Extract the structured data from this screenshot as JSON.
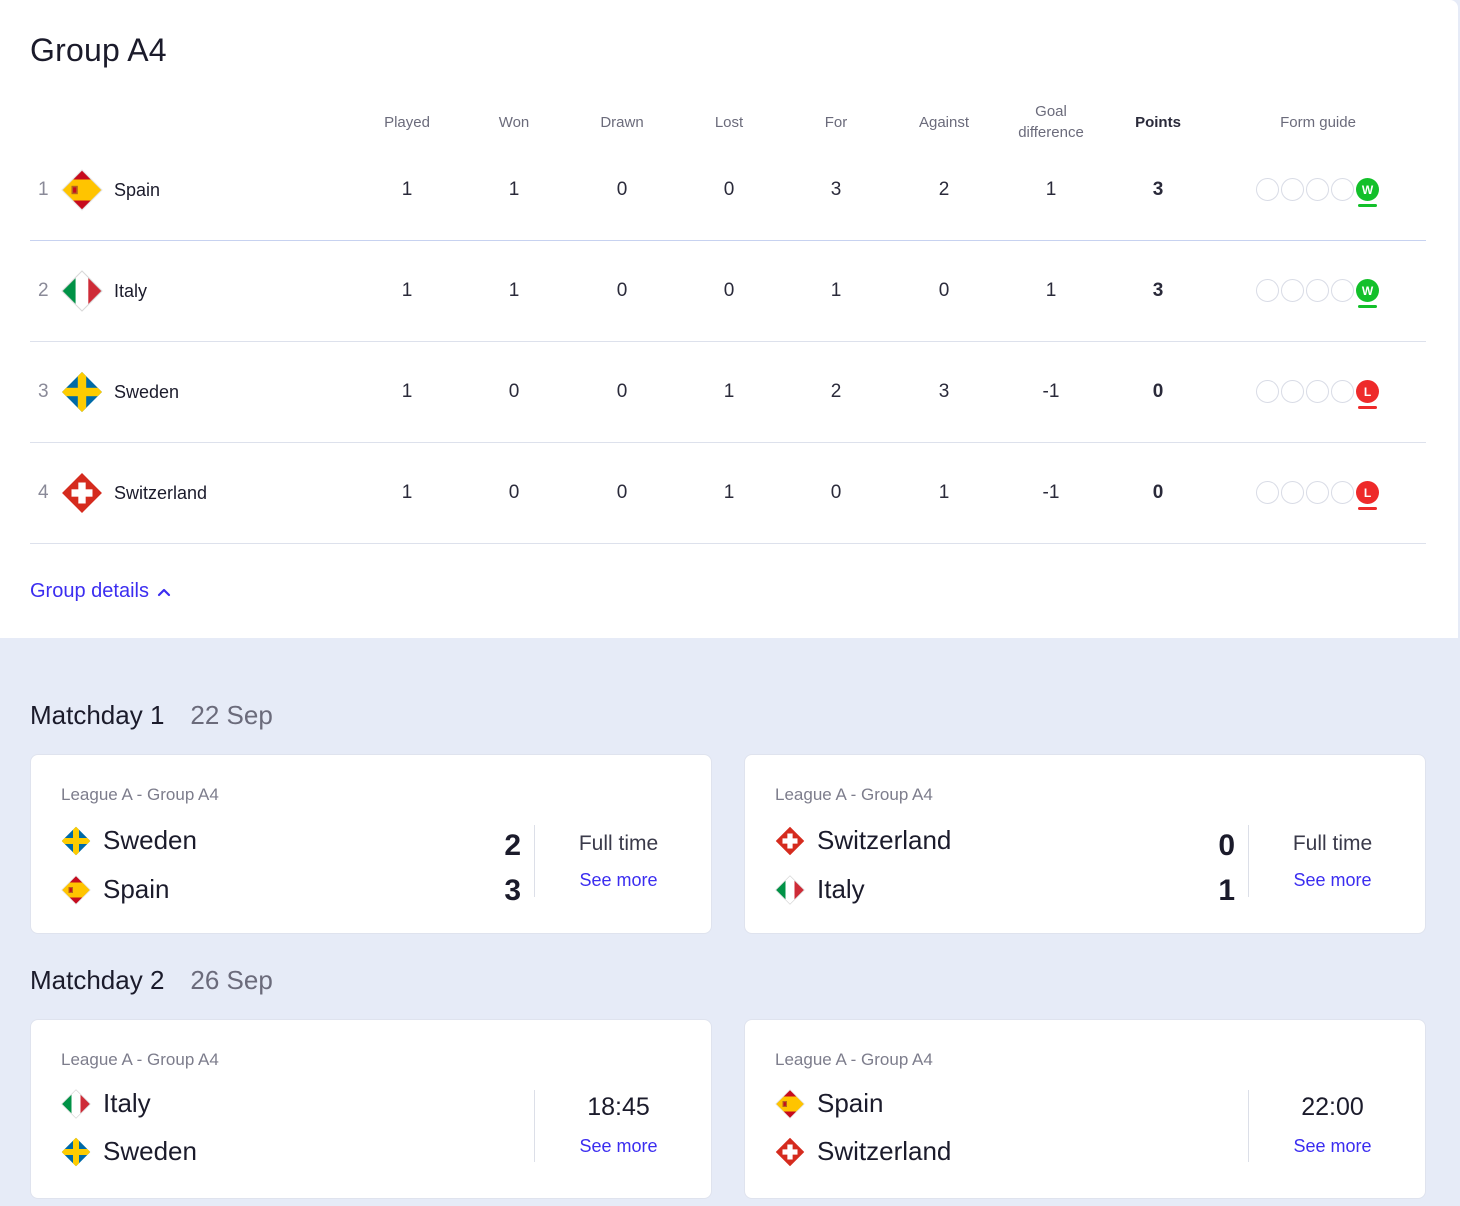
{
  "group": {
    "title": "Group A4",
    "details_label": "Group details"
  },
  "table": {
    "headers": {
      "played": "Played",
      "won": "Won",
      "drawn": "Drawn",
      "lost": "Lost",
      "for": "For",
      "against": "Against",
      "goal_difference": "Goal difference",
      "points": "Points",
      "form_guide": "Form guide"
    },
    "rows": [
      {
        "pos": "1",
        "team": "Spain",
        "flag": "spain-flag-icon",
        "played": "1",
        "won": "1",
        "drawn": "0",
        "lost": "0",
        "for": "3",
        "against": "2",
        "gd": "1",
        "points": "3",
        "form": "W"
      },
      {
        "pos": "2",
        "team": "Italy",
        "flag": "italy-flag-icon",
        "played": "1",
        "won": "1",
        "drawn": "0",
        "lost": "0",
        "for": "1",
        "against": "0",
        "gd": "1",
        "points": "3",
        "form": "W"
      },
      {
        "pos": "3",
        "team": "Sweden",
        "flag": "sweden-flag-icon",
        "played": "1",
        "won": "0",
        "drawn": "0",
        "lost": "1",
        "for": "2",
        "against": "3",
        "gd": "-1",
        "points": "0",
        "form": "L"
      },
      {
        "pos": "4",
        "team": "Switzerland",
        "flag": "switzerland-flag-icon",
        "played": "1",
        "won": "0",
        "drawn": "0",
        "lost": "1",
        "for": "0",
        "against": "1",
        "gd": "-1",
        "points": "0",
        "form": "L"
      }
    ]
  },
  "matchdays": [
    {
      "title": "Matchday 1",
      "date": "22 Sep",
      "matches": [
        {
          "league": "League A - Group A4",
          "home": "Sweden",
          "away": "Spain",
          "home_score": "2",
          "away_score": "3",
          "status": "Full time",
          "link": "See more"
        },
        {
          "league": "League A - Group A4",
          "home": "Switzerland",
          "away": "Italy",
          "home_score": "0",
          "away_score": "1",
          "status": "Full time",
          "link": "See more"
        }
      ]
    },
    {
      "title": "Matchday 2",
      "date": "26 Sep",
      "matches": [
        {
          "league": "League A - Group A4",
          "home": "Italy",
          "away": "Sweden",
          "status": "18:45",
          "link": "See more"
        },
        {
          "league": "League A - Group A4",
          "home": "Spain",
          "away": "Switzerland",
          "status": "22:00",
          "link": "See more"
        }
      ]
    }
  ],
  "colors": {
    "accent": "#3b2df0",
    "win": "#13c02a",
    "loss": "#ee2a2a",
    "background": "#e6ebf7",
    "panel": "#ffffff"
  }
}
